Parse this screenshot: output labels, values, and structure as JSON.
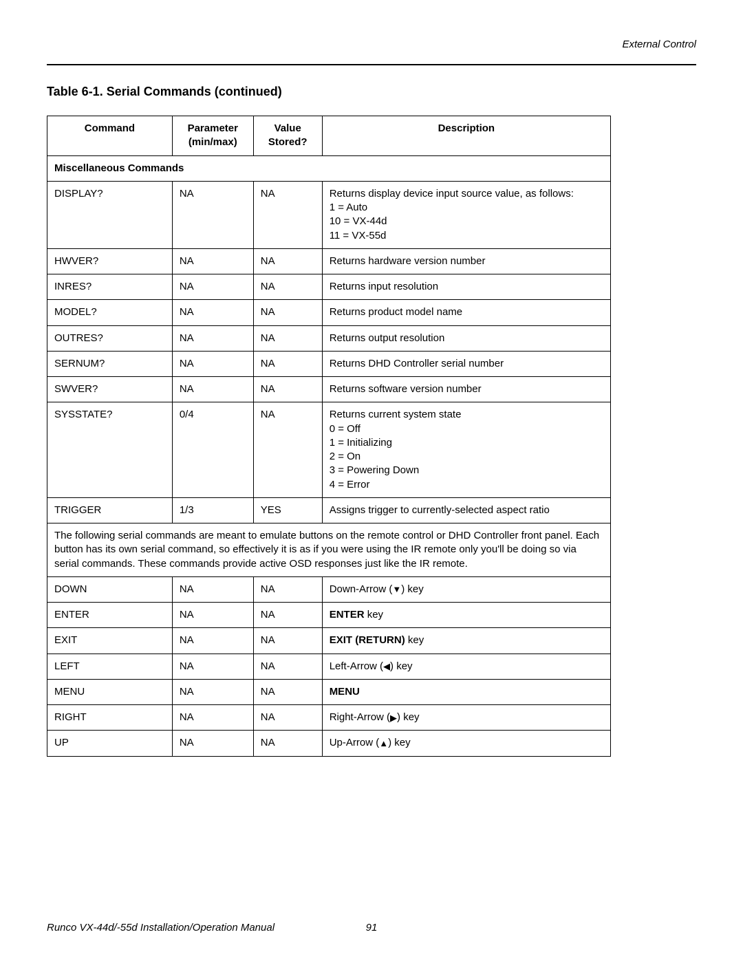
{
  "header": {
    "section_label": "External Control"
  },
  "table": {
    "title": "Table 6-1. Serial Commands (continued)",
    "columns": {
      "command": "Command",
      "parameter": "Parameter (min/max)",
      "value_stored": "Value Stored?",
      "description": "Description"
    },
    "section_heading": "Miscellaneous Commands",
    "rows_a": [
      {
        "command": "DISPLAY?",
        "parameter": "NA",
        "value_stored": "NA",
        "description_lines": [
          "Returns display device input source value, as follows:",
          "1 = Auto",
          "10 = VX-44d",
          "11 = VX-55d"
        ]
      },
      {
        "command": "HWVER?",
        "parameter": "NA",
        "value_stored": "NA",
        "description_lines": [
          "Returns hardware version number"
        ]
      },
      {
        "command": "INRES?",
        "parameter": "NA",
        "value_stored": "NA",
        "description_lines": [
          "Returns input resolution"
        ]
      },
      {
        "command": "MODEL?",
        "parameter": "NA",
        "value_stored": "NA",
        "description_lines": [
          "Returns product model name"
        ]
      },
      {
        "command": "OUTRES?",
        "parameter": "NA",
        "value_stored": "NA",
        "description_lines": [
          "Returns output resolution"
        ]
      },
      {
        "command": "SERNUM?",
        "parameter": "NA",
        "value_stored": "NA",
        "description_lines": [
          "Returns DHD Controller serial number"
        ]
      },
      {
        "command": "SWVER?",
        "parameter": "NA",
        "value_stored": "NA",
        "description_lines": [
          "Returns software version number"
        ]
      },
      {
        "command": "SYSSTATE?",
        "parameter": "0/4",
        "value_stored": "NA",
        "description_lines": [
          "Returns current system state",
          "0 = Off",
          "1 = Initializing",
          "2 = On",
          "3 = Powering Down",
          "4 = Error"
        ]
      },
      {
        "command": "TRIGGER",
        "parameter": "1/3",
        "value_stored": "YES",
        "description_lines": [
          "Assigns trigger to currently-selected aspect ratio"
        ]
      }
    ],
    "note_text": "The following serial commands are meant to emulate buttons on the remote control or DHD Controller front panel. Each button has its own serial command, so effectively it is as if you were using the IR remote only you'll be doing so via serial commands. These commands provide active OSD responses just like the IR remote.",
    "rows_b": [
      {
        "command": "DOWN",
        "parameter": "NA",
        "value_stored": "NA",
        "desc_pre": "Down-Arrow (",
        "arrow": "▼",
        "desc_post": ") key",
        "bold": ""
      },
      {
        "command": "ENTER",
        "parameter": "NA",
        "value_stored": "NA",
        "desc_pre": "",
        "arrow": "",
        "desc_post": " key",
        "bold": "ENTER"
      },
      {
        "command": "EXIT",
        "parameter": "NA",
        "value_stored": "NA",
        "desc_pre": "",
        "arrow": "",
        "desc_post": " key",
        "bold": "EXIT (RETURN)"
      },
      {
        "command": "LEFT",
        "parameter": "NA",
        "value_stored": "NA",
        "desc_pre": "Left-Arrow (",
        "arrow": "◀",
        "desc_post": ") key",
        "bold": ""
      },
      {
        "command": "MENU",
        "parameter": "NA",
        "value_stored": "NA",
        "desc_pre": "",
        "arrow": "",
        "desc_post": "",
        "bold": "MENU"
      },
      {
        "command": "RIGHT",
        "parameter": "NA",
        "value_stored": "NA",
        "desc_pre": "Right-Arrow (",
        "arrow": "▶",
        "desc_post": ") key",
        "bold": ""
      },
      {
        "command": "UP",
        "parameter": "NA",
        "value_stored": "NA",
        "desc_pre": "Up-Arrow (",
        "arrow": "▲",
        "desc_post": ") key",
        "bold": ""
      }
    ]
  },
  "footer": {
    "manual_title": "Runco VX-44d/-55d Installation/Operation Manual",
    "page_number": "91"
  }
}
